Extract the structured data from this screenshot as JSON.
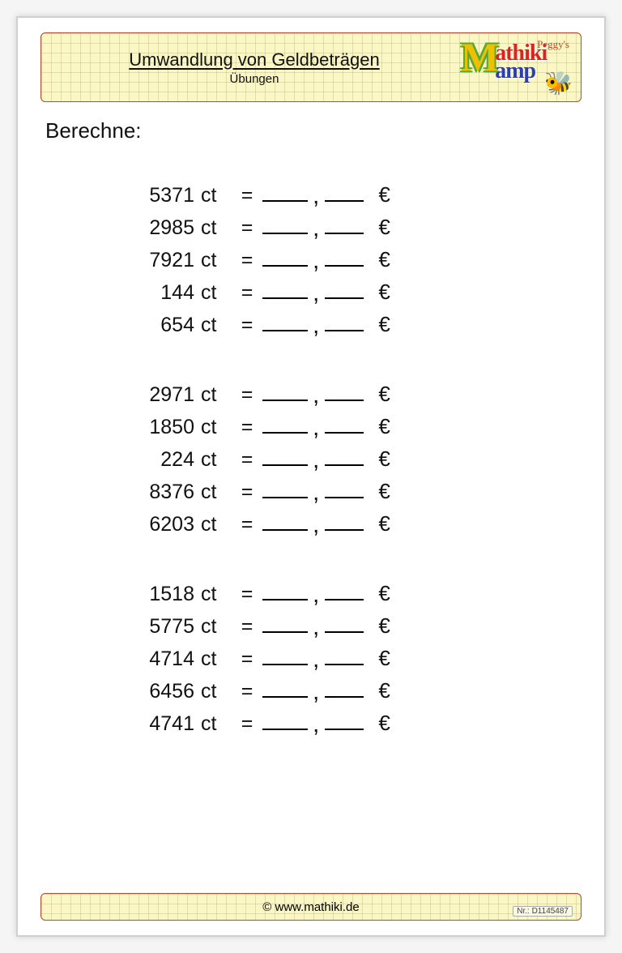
{
  "colors": {
    "page_bg": "#ffffff",
    "outer_bg": "#f5f5f5",
    "band_bg": "#fbf7c4",
    "band_border": "#b74a2a",
    "grid_line": "rgba(189,174,60,0.35)",
    "text": "#111111",
    "blank_line": "#000000"
  },
  "typography": {
    "font_family": "Comic Sans MS",
    "title_fontsize": 22,
    "subtitle_fontsize": 15,
    "instruction_fontsize": 26,
    "row_fontsize": 25
  },
  "header": {
    "title": "Umwandlung von Geldbeträgen",
    "subtitle": "Übungen",
    "logo_brand_top": "Peggy's",
    "logo_line1": "athiki",
    "logo_line2": "amp",
    "logo_big_letter": "M"
  },
  "instruction": "Berechne:",
  "unit_from": "ct",
  "equals": "=",
  "separator": ",",
  "unit_to": "€",
  "groups": [
    {
      "values": [
        "5371",
        "2985",
        "7921",
        "144",
        "654"
      ]
    },
    {
      "values": [
        "2971",
        "1850",
        "224",
        "8376",
        "6203"
      ]
    },
    {
      "values": [
        "1518",
        "5775",
        "4714",
        "6456",
        "4741"
      ]
    }
  ],
  "footer": {
    "copyright": "© www.mathiki.de",
    "doc_number": "Nr.: D1145487"
  }
}
